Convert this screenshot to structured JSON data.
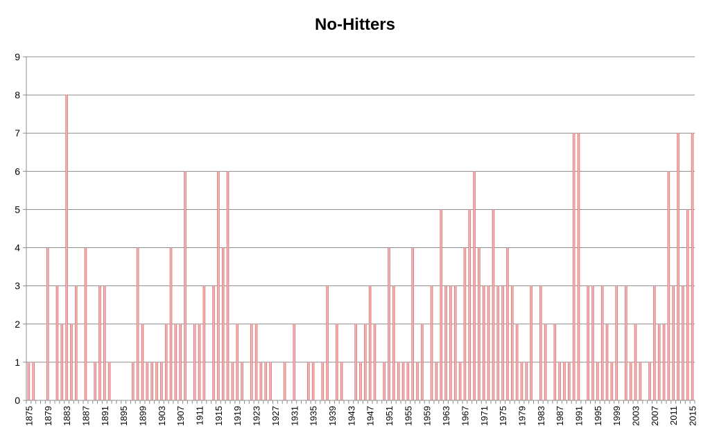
{
  "chart_data": {
    "type": "bar",
    "title": "No-Hitters",
    "xlabel": "",
    "ylabel": "",
    "ylim": [
      0,
      9
    ],
    "yticks": [
      0,
      1,
      2,
      3,
      4,
      5,
      6,
      7,
      8,
      9
    ],
    "grid": true,
    "legend": "none",
    "bar_color": "#d9595b",
    "x_tick_labels": [
      "1875",
      "1879",
      "1883",
      "1887",
      "1891",
      "1895",
      "1899",
      "1903",
      "1907",
      "1911",
      "1915",
      "1919",
      "1923",
      "1927",
      "1931",
      "1935",
      "1939",
      "1943",
      "1947",
      "1951",
      "1955",
      "1959",
      "1963",
      "1967",
      "1971",
      "1975",
      "1979",
      "1983",
      "1987",
      "1991",
      "1995",
      "1999",
      "2003",
      "2007",
      "2011",
      "2015"
    ],
    "categories": [
      1875,
      1876,
      1877,
      1878,
      1879,
      1880,
      1881,
      1882,
      1883,
      1884,
      1885,
      1886,
      1887,
      1888,
      1889,
      1890,
      1891,
      1892,
      1893,
      1894,
      1895,
      1896,
      1897,
      1898,
      1899,
      1900,
      1901,
      1902,
      1903,
      1904,
      1905,
      1906,
      1907,
      1908,
      1909,
      1910,
      1911,
      1912,
      1913,
      1914,
      1915,
      1916,
      1917,
      1918,
      1919,
      1920,
      1921,
      1922,
      1923,
      1924,
      1925,
      1926,
      1927,
      1928,
      1929,
      1930,
      1931,
      1932,
      1933,
      1934,
      1935,
      1936,
      1937,
      1938,
      1939,
      1940,
      1941,
      1942,
      1943,
      1944,
      1945,
      1946,
      1947,
      1948,
      1949,
      1950,
      1951,
      1952,
      1953,
      1954,
      1955,
      1956,
      1957,
      1958,
      1959,
      1960,
      1961,
      1962,
      1963,
      1964,
      1965,
      1966,
      1967,
      1968,
      1969,
      1970,
      1971,
      1972,
      1973,
      1974,
      1975,
      1976,
      1977,
      1978,
      1979,
      1980,
      1981,
      1982,
      1983,
      1984,
      1985,
      1986,
      1987,
      1988,
      1989,
      1990,
      1991,
      1992,
      1993,
      1994,
      1995,
      1996,
      1997,
      1998,
      1999,
      2000,
      2001,
      2002,
      2003,
      2004,
      2005,
      2006,
      2007,
      2008,
      2009,
      2010,
      2011,
      2012,
      2013,
      2014,
      2015
    ],
    "values": [
      1,
      1,
      0,
      0,
      4,
      0,
      3,
      2,
      8,
      2,
      3,
      0,
      4,
      0,
      1,
      3,
      3,
      1,
      0,
      0,
      0,
      0,
      1,
      4,
      2,
      1,
      1,
      1,
      1,
      2,
      4,
      2,
      2,
      6,
      0,
      2,
      2,
      3,
      0,
      3,
      6,
      4,
      6,
      1,
      2,
      1,
      0,
      2,
      2,
      1,
      1,
      1,
      0,
      0,
      1,
      0,
      2,
      0,
      0,
      1,
      1,
      0,
      1,
      3,
      0,
      2,
      1,
      0,
      0,
      2,
      1,
      2,
      3,
      2,
      0,
      1,
      4,
      3,
      1,
      1,
      1,
      4,
      1,
      2,
      0,
      3,
      1,
      5,
      3,
      3,
      3,
      1,
      4,
      5,
      6,
      4,
      3,
      3,
      5,
      3,
      3,
      4,
      3,
      2,
      1,
      1,
      3,
      0,
      3,
      2,
      0,
      2,
      1,
      1,
      1,
      7,
      7,
      0,
      3,
      3,
      1,
      3,
      2,
      1,
      3,
      0,
      3,
      1,
      2,
      1,
      0,
      1,
      3,
      2,
      2,
      6,
      3,
      7,
      3,
      5,
      7
    ]
  }
}
